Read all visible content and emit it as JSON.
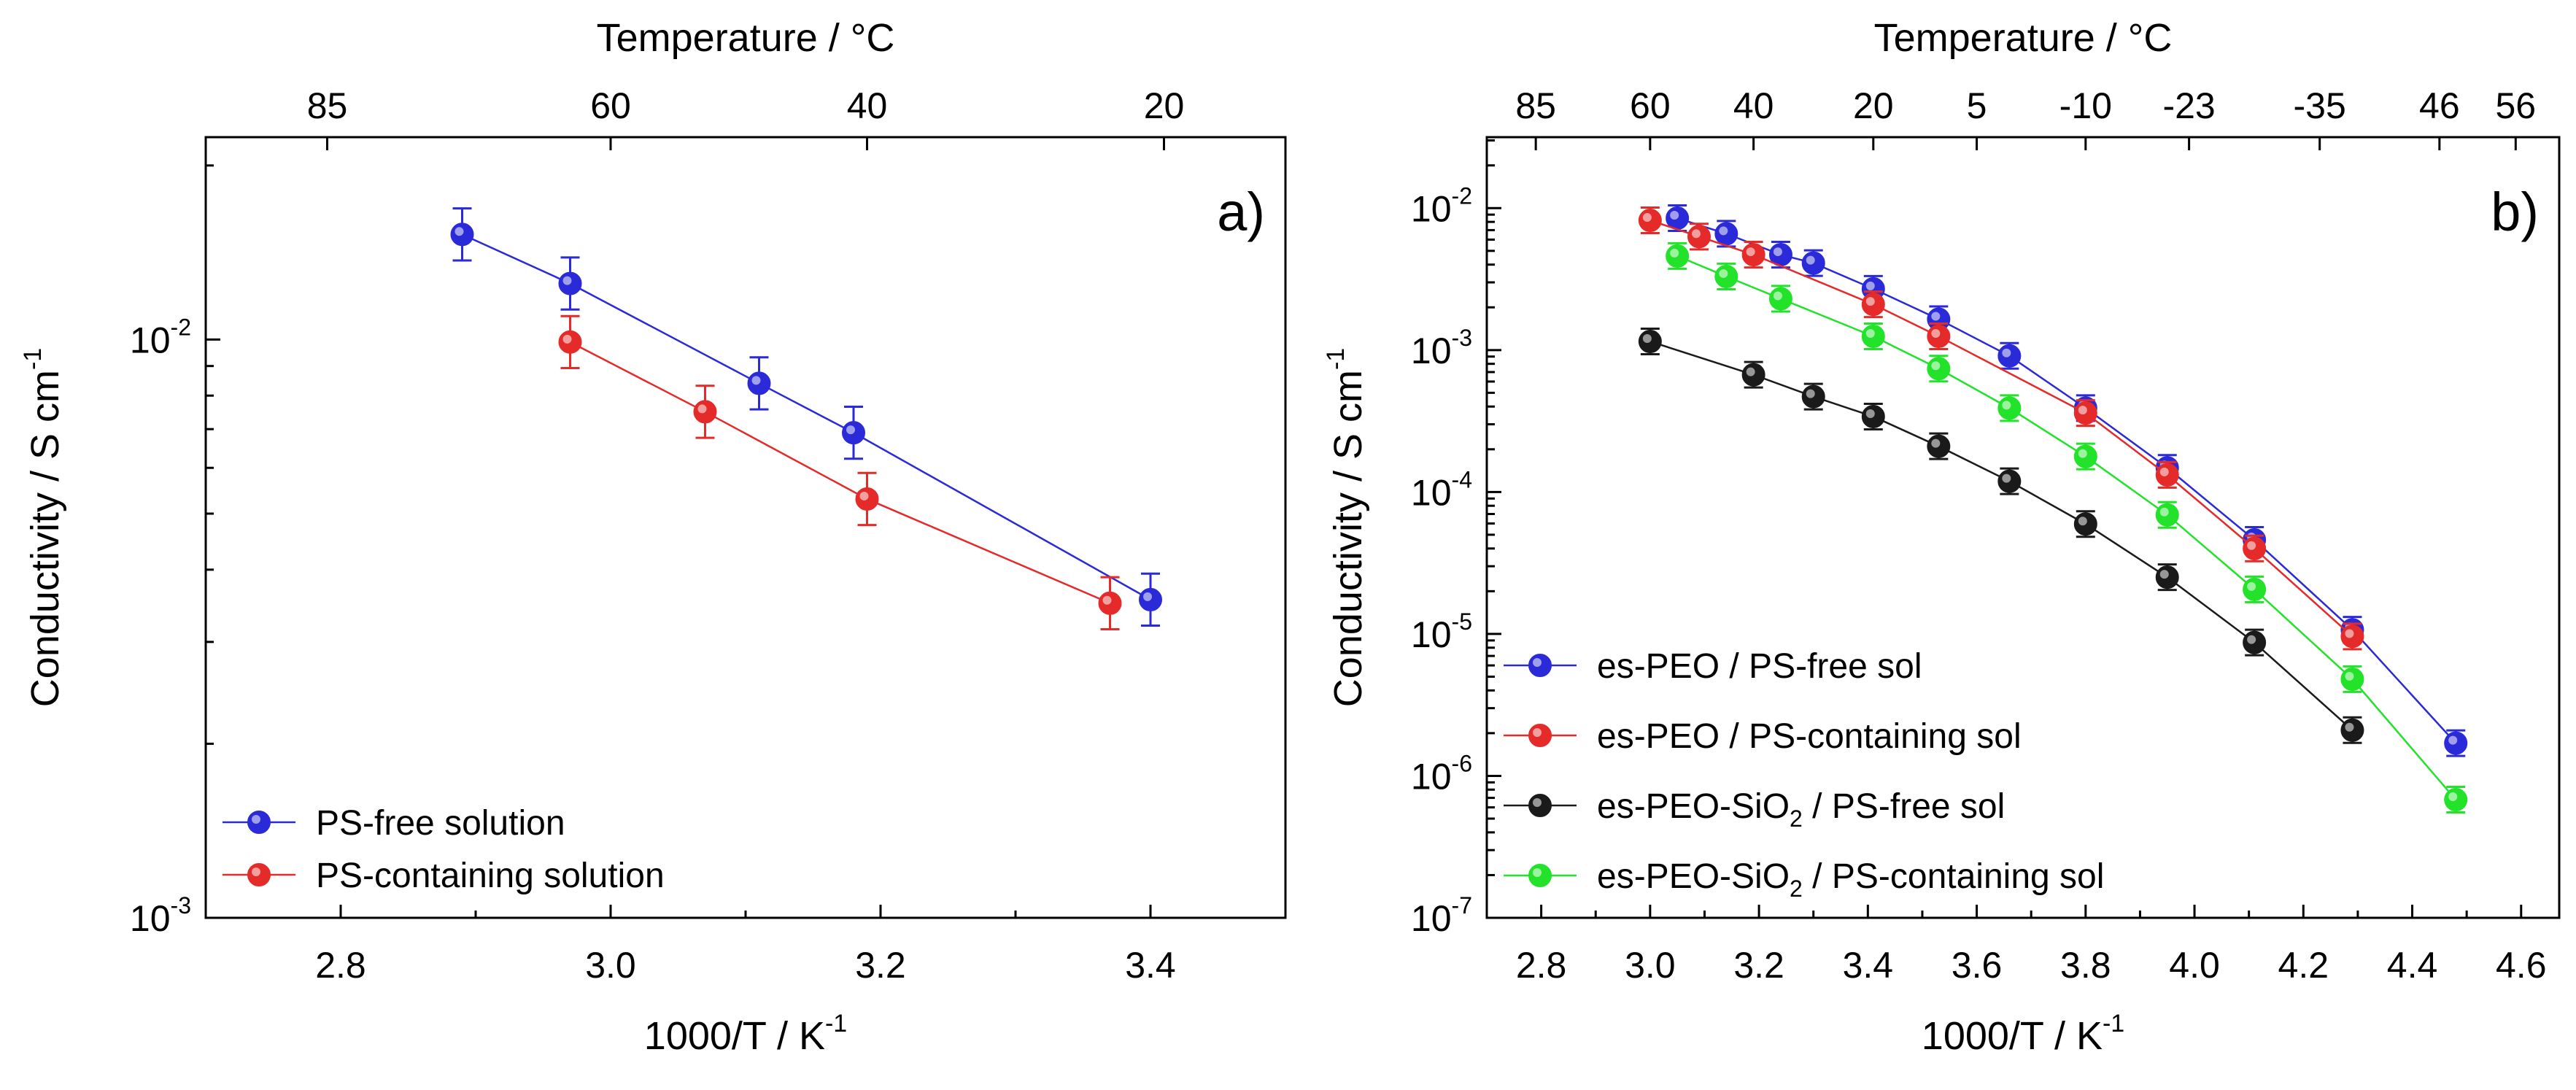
{
  "chart_data": [
    {
      "type": "scatter",
      "panel_label": "a)",
      "xlabel": "1000/T / K",
      "xlabel_sup": "-1",
      "ylabel": "Conductivity / S cm",
      "ylabel_sup": "-1",
      "top_axis_label": "Temperature / °C",
      "y_scale": "log",
      "xlim": [
        2.7,
        3.5
      ],
      "ylim_log10": [
        -3,
        -1.65
      ],
      "x_ticks": [
        "2.8",
        "3.0",
        "3.2",
        "3.4"
      ],
      "x_tick_values": [
        2.8,
        3.0,
        3.2,
        3.4
      ],
      "y_ticks": [
        {
          "base": "10",
          "exp": "-2",
          "log": -2
        },
        {
          "base": "10",
          "exp": "-3",
          "log": -3
        }
      ],
      "top_ticks": [
        "85",
        "60",
        "40",
        "20"
      ],
      "top_tick_x": [
        2.79,
        3.0,
        3.19,
        3.41
      ],
      "legend_position": "bottom-left",
      "series": [
        {
          "name": "PS-free solution",
          "color": "#2a2ad8",
          "x": [
            2.89,
            2.97,
            3.11,
            3.18,
            3.4
          ],
          "y": [
            0.0152,
            0.0125,
            0.0084,
            0.0069,
            0.00355
          ],
          "err_log": 0.045
        },
        {
          "name": "PS-containing solution",
          "color": "#e52a2a",
          "x": [
            2.97,
            3.07,
            3.19,
            3.37
          ],
          "y": [
            0.0099,
            0.0075,
            0.0053,
            0.0035
          ],
          "err_log": 0.045
        }
      ]
    },
    {
      "type": "scatter",
      "panel_label": "b)",
      "xlabel": "1000/T / K",
      "xlabel_sup": "-1",
      "ylabel": "Conductivity / S cm",
      "ylabel_sup": "-1",
      "top_axis_label": "Temperature / °C",
      "y_scale": "log",
      "xlim": [
        2.7,
        4.67
      ],
      "ylim_log10": [
        -7,
        -1.5
      ],
      "x_ticks": [
        "2.8",
        "3.0",
        "3.2",
        "3.4",
        "3.6",
        "3.8",
        "4.0",
        "4.2",
        "4.4",
        "4.6"
      ],
      "x_tick_values": [
        2.8,
        3.0,
        3.2,
        3.4,
        3.6,
        3.8,
        4.0,
        4.2,
        4.4,
        4.6
      ],
      "y_ticks": [
        {
          "base": "10",
          "exp": "-2",
          "log": -2
        },
        {
          "base": "10",
          "exp": "-3",
          "log": -3
        },
        {
          "base": "10",
          "exp": "-4",
          "log": -4
        },
        {
          "base": "10",
          "exp": "-5",
          "log": -5
        },
        {
          "base": "10",
          "exp": "-6",
          "log": -6
        },
        {
          "base": "10",
          "exp": "-7",
          "log": -7
        }
      ],
      "top_ticks": [
        "85",
        "60",
        "40",
        "20",
        "5",
        "-10",
        "-23",
        "-35",
        "46",
        "56"
      ],
      "top_tick_x": [
        2.79,
        3.0,
        3.19,
        3.41,
        3.6,
        3.8,
        3.99,
        4.23,
        4.45,
        4.59
      ],
      "legend_position": "bottom-left",
      "series": [
        {
          "name": "es-PEO / PS-free sol",
          "color": "#2a2ad8",
          "x": [
            3.05,
            3.14,
            3.24,
            3.3,
            3.41,
            3.53,
            3.66,
            3.8,
            3.95,
            4.11,
            4.29,
            4.48
          ],
          "y": [
            0.0085,
            0.0066,
            0.0047,
            0.0041,
            0.0027,
            0.00165,
            0.00091,
            0.00039,
            0.000148,
            4.6e-05,
            1.07e-05,
            1.7e-06
          ],
          "err_log": 0.09
        },
        {
          "name": "es-PEO / PS-containing sol",
          "color": "#e52a2a",
          "x": [
            3.0,
            3.09,
            3.19,
            3.41,
            3.53,
            3.8,
            3.95,
            4.11,
            4.29
          ],
          "y": [
            0.0082,
            0.0063,
            0.0047,
            0.0021,
            0.00125,
            0.00036,
            0.000132,
            4e-05,
            9.6e-06
          ],
          "err_log": 0.09
        },
        {
          "name": "es-PEO-SiO",
          "name_sub": "2",
          "name_rest": " / PS-free sol",
          "color": "#1a1a1a",
          "x": [
            3.0,
            3.19,
            3.3,
            3.41,
            3.53,
            3.66,
            3.8,
            3.95,
            4.11,
            4.29
          ],
          "y": [
            0.00115,
            0.00067,
            0.00047,
            0.00034,
            0.00021,
            0.000119,
            5.95e-05,
            2.51e-05,
            8.7e-06,
            2.1e-06
          ],
          "err_log": 0.09
        },
        {
          "name": "es-PEO-SiO",
          "name_sub": "2",
          "name_rest": " / PS-containing sol",
          "color": "#22e22a",
          "x": [
            3.05,
            3.14,
            3.24,
            3.41,
            3.53,
            3.66,
            3.8,
            3.95,
            4.11,
            4.29,
            4.48
          ],
          "y": [
            0.0046,
            0.0033,
            0.0023,
            0.00125,
            0.00074,
            0.00039,
            0.000178,
            6.9e-05,
            2.06e-05,
            4.8e-06,
            6.8e-07
          ],
          "err_log": 0.09
        }
      ]
    }
  ]
}
